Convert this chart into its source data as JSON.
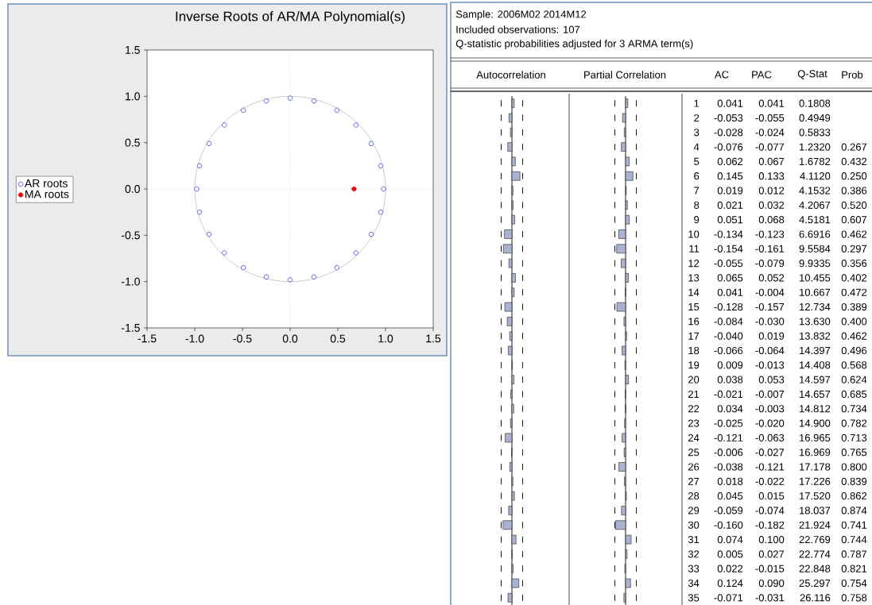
{
  "chart_data": [
    {
      "type": "scatter",
      "title": "Inverse Roots of AR/MA Polynomial(s)",
      "xlim": [
        -1.5,
        1.5
      ],
      "ylim": [
        -1.5,
        1.5
      ],
      "xticks": [
        -1.5,
        {
          "value": -1,
          "label": "-1.0"
        },
        -0.5,
        {
          "value": 0,
          "label": "0.0"
        },
        0.5,
        {
          "value": 1,
          "label": "1.0"
        },
        1.5
      ],
      "yticks": [
        -1.5,
        {
          "value": -1,
          "label": "-1.0"
        },
        -0.5,
        {
          "value": 0,
          "label": "0.0"
        },
        0.5,
        {
          "value": 1,
          "label": "1.0"
        },
        1.5
      ],
      "legend": "left",
      "marker": "circle",
      "ref_lines": [
        {
          "axis": "x",
          "value": 0,
          "color": "#c0c0c0",
          "line_style": "dotted"
        },
        {
          "axis": "y",
          "value": 0,
          "color": "#c0c0c0",
          "line_style": "dotted"
        }
      ],
      "series": [
        {
          "name": "AR roots",
          "color": "#0000ff",
          "x": [
            0.98,
            0.95,
            0.85,
            0.69,
            0.49,
            0.25,
            0,
            -0.25,
            -0.49,
            -0.69,
            -0.85,
            -0.95,
            -0.98,
            -0.95,
            -0.85,
            -0.69,
            -0.49,
            -0.25,
            0,
            0.25,
            0.49,
            0.69,
            0.85,
            0.95
          ],
          "values": [
            0,
            0.25,
            0.49,
            0.69,
            0.85,
            0.95,
            0.98,
            0.95,
            0.85,
            0.69,
            0.49,
            0.25,
            0,
            -0.25,
            -0.49,
            -0.69,
            -0.85,
            -0.95,
            -0.98,
            -0.95,
            -0.85,
            -0.69,
            -0.49,
            -0.25
          ]
        },
        {
          "name": "MA roots",
          "color": "#ff0000",
          "x": [
            0.67
          ],
          "values": [
            0
          ]
        }
      ]
    },
    {
      "type": "bar",
      "orientation": "horizontal",
      "title": "Autocorrelation",
      "annotations": [
        "AC"
      ],
      "color": "#a9b2d0",
      "categories": [
        "1",
        "2",
        "3",
        "4",
        "5",
        "6",
        "7",
        "8",
        "9",
        "10",
        "11",
        "12",
        "13",
        "14",
        "15",
        "16",
        "17",
        "18",
        "19",
        "20",
        "21",
        "22",
        "23",
        "24",
        "25",
        "26",
        "27",
        "28",
        "29",
        "30",
        "31",
        "32",
        "33",
        "34",
        "35"
      ],
      "values": [
        0.041,
        -0.053,
        -0.028,
        -0.076,
        0.062,
        0.145,
        0.019,
        0.021,
        0.051,
        -0.134,
        -0.154,
        -0.055,
        0.065,
        0.041,
        -0.128,
        -0.084,
        -0.04,
        -0.066,
        0.009,
        0.038,
        -0.021,
        0.034,
        -0.025,
        -0.121,
        -0.006,
        -0.038,
        0.018,
        0.045,
        -0.059,
        -0.16,
        0.074,
        0.005,
        0.022,
        0.124,
        -0.071
      ],
      "value_labels": [
        "0.041",
        "-0.053",
        "-0.028",
        "-0.076",
        "0.062",
        "0.145",
        "0.019",
        "0.021",
        "0.051",
        "-0.134",
        "-0.154",
        "-0.055",
        "0.065",
        "0.041",
        "-0.128",
        "-0.084",
        "-0.040",
        "-0.066",
        "0.009",
        "0.038",
        "-0.021",
        "0.034",
        "-0.025",
        "-0.121",
        "-0.006",
        "-0.038",
        "0.018",
        "0.045",
        "-0.059",
        "-0.160",
        "0.074",
        "0.005",
        "0.022",
        "0.124",
        "-0.071"
      ],
      "ref_lines": [
        {
          "axis": "x",
          "value": -0.193,
          "color": "#000000",
          "line_style": "dashed"
        },
        {
          "axis": "x",
          "value": 0.193,
          "color": "#000000",
          "line_style": "dashed"
        }
      ]
    },
    {
      "type": "bar",
      "orientation": "horizontal",
      "title": "Partial Correlation",
      "annotations": [
        "PAC"
      ],
      "tick_labels": false,
      "color": "#a9b2d0",
      "categories": [
        "1",
        "2",
        "3",
        "4",
        "5",
        "6",
        "7",
        "8",
        "9",
        "10",
        "11",
        "12",
        "13",
        "14",
        "15",
        "16",
        "17",
        "18",
        "19",
        "20",
        "21",
        "22",
        "23",
        "24",
        "25",
        "26",
        "27",
        "28",
        "29",
        "30",
        "31",
        "32",
        "33",
        "34",
        "35"
      ],
      "values": [
        0.041,
        -0.055,
        -0.024,
        -0.077,
        0.067,
        0.133,
        0.012,
        0.032,
        0.068,
        -0.123,
        -0.161,
        -0.079,
        0.052,
        -0.004,
        -0.157,
        -0.03,
        0.019,
        -0.064,
        -0.013,
        0.053,
        -0.007,
        -0.003,
        -0.02,
        -0.063,
        -0.027,
        -0.121,
        -0.022,
        0.015,
        -0.074,
        -0.182,
        0.1,
        0.027,
        -0.015,
        0.09,
        -0.031
      ],
      "value_labels": [
        "0.041",
        "-0.055",
        "-0.024",
        "-0.077",
        "0.067",
        "0.133",
        "0.012",
        "0.032",
        "0.068",
        "-0.123",
        "-0.161",
        "-0.079",
        "0.052",
        "-0.004",
        "-0.157",
        "-0.030",
        "0.019",
        "-0.064",
        "-0.013",
        "0.053",
        "-0.007",
        "-0.003",
        "-0.020",
        "-0.063",
        "-0.027",
        "-0.121",
        "-0.022",
        "0.015",
        "-0.074",
        "-0.182",
        "0.100",
        "0.027",
        "-0.015",
        "0.090",
        "-0.031"
      ],
      "ref_lines": [
        {
          "axis": "x",
          "value": -0.193,
          "color": "#000000",
          "line_style": "dashed"
        },
        {
          "axis": "x",
          "value": 0.193,
          "color": "#000000",
          "line_style": "dashed"
        }
      ]
    },
    {
      "type": "other",
      "title": "Sample: 2006M02 2014M12",
      "subtitle": "Included observations: 107",
      "annotations": [
        "Q-statistic probabilities adjusted for 3 ARMA term(s)",
        "Q-Stat",
        "0.1808",
        "0.4949",
        "0.5833",
        "1.2320",
        "1.6782",
        "4.1120",
        "4.1532",
        "4.2067",
        "4.5181",
        "6.6916",
        "9.5584",
        "9.9335",
        "10.455",
        "10.667",
        "12.734",
        "13.630",
        "13.832",
        "14.397",
        "14.408",
        "14.597",
        "14.657",
        "14.812",
        "14.900",
        "16.965",
        "16.969",
        "17.178",
        "17.226",
        "17.520",
        "18.037",
        "21.924",
        "22.769",
        "22.774",
        "22.848",
        "25.297",
        "26.116",
        "Prob",
        "0.267",
        "0.432",
        "0.250",
        "0.386",
        "0.520",
        "0.607",
        "0.462",
        "0.297",
        "0.356",
        "0.402",
        "0.472",
        "0.389",
        "0.400",
        "0.462",
        "0.496",
        "0.568",
        "0.624",
        "0.685",
        "0.734",
        "0.782",
        "0.713",
        "0.765",
        "0.800",
        "0.839",
        "0.862",
        "0.874",
        "0.741",
        "0.744",
        "0.787",
        "0.821",
        "0.754",
        "0.758"
      ]
    }
  ]
}
